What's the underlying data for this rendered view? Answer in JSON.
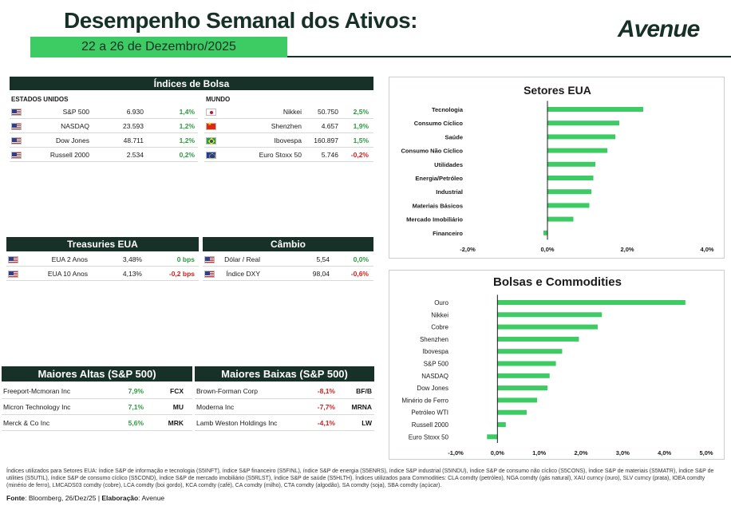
{
  "header": {
    "title": "Desempenho Semanal dos Ativos:",
    "date_range": "22 a 26 de Dezembro/2025",
    "logo": "Avenue"
  },
  "indices": {
    "title": "Índices de Bolsa",
    "us_label": "ESTADOS UNIDOS",
    "world_label": "MUNDO",
    "us": [
      {
        "flag": "us",
        "name": "S&P 500",
        "value": "6.930",
        "change": "1,4%"
      },
      {
        "flag": "us",
        "name": "NASDAQ",
        "value": "23.593",
        "change": "1,2%"
      },
      {
        "flag": "us",
        "name": "Dow Jones",
        "value": "48.711",
        "change": "1,2%"
      },
      {
        "flag": "us",
        "name": "Russell 2000",
        "value": "2.534",
        "change": "0,2%"
      }
    ],
    "world": [
      {
        "flag": "jp",
        "name": "Nikkei",
        "value": "50.750",
        "change": "2,5%"
      },
      {
        "flag": "cn",
        "name": "Shenzhen",
        "value": "4.657",
        "change": "1,9%"
      },
      {
        "flag": "br",
        "name": "Ibovespa",
        "value": "160.897",
        "change": "1,5%"
      },
      {
        "flag": "eu",
        "name": "Euro Stoxx 50",
        "value": "5.746",
        "change": "-0,2%"
      }
    ]
  },
  "treasuries": {
    "title": "Treasuries EUA",
    "rows": [
      {
        "flag": "us",
        "name": "EUA 2 Anos",
        "value": "3,48%",
        "change": "0 bps"
      },
      {
        "flag": "us",
        "name": "EUA 10 Anos",
        "value": "4,13%",
        "change": "-0,2 bps"
      }
    ]
  },
  "fx": {
    "title": "Câmbio",
    "rows": [
      {
        "flag": "us",
        "name": "Dólar / Real",
        "value": "5,54",
        "change": "0,0%"
      },
      {
        "flag": "us",
        "name": "Índice DXY",
        "value": "98,04",
        "change": "-0,6%"
      }
    ]
  },
  "top_gainers": {
    "title": "Maiores Altas (S&P 500)",
    "rows": [
      {
        "name": "Freeport-Mcmoran Inc",
        "change": "7,9%",
        "ticker": "FCX"
      },
      {
        "name": "Micron Technology Inc",
        "change": "7,1%",
        "ticker": "MU"
      },
      {
        "name": "Merck & Co Inc",
        "change": "5,6%",
        "ticker": "MRK"
      }
    ]
  },
  "top_losers": {
    "title": "Maiores Baixas (S&P 500)",
    "rows": [
      {
        "name": "Brown-Forman Corp",
        "change": "-8,1%",
        "ticker": "BF/B"
      },
      {
        "name": "Moderna Inc",
        "change": "-7,7%",
        "ticker": "MRNA"
      },
      {
        "name": "Lamb Weston Holdings Inc",
        "change": "-4,1%",
        "ticker": "LW"
      }
    ]
  },
  "chart_data": [
    {
      "type": "bar",
      "orientation": "horizontal",
      "title": "Setores EUA",
      "categories": [
        "Tecnologia",
        "Consumo Cíclico",
        "Saúde",
        "Consumo Não Cíclico",
        "Utilidades",
        "Energia/Petróleo",
        "Industrial",
        "Materiais Básicos",
        "Mercado Imobiliário",
        "Financeiro"
      ],
      "values": [
        2.4,
        1.8,
        1.7,
        1.5,
        1.2,
        1.15,
        1.1,
        1.05,
        0.65,
        -0.1
      ],
      "xlim": [
        -2.0,
        4.0
      ],
      "ticks": [
        "-2,0%",
        "0,0%",
        "2,0%",
        "4,0%"
      ],
      "tick_values": [
        -2.0,
        0.0,
        2.0,
        4.0
      ],
      "color": "#3dcb63"
    },
    {
      "type": "bar",
      "orientation": "horizontal",
      "title": "Bolsas e Commodities",
      "categories": [
        "Ouro",
        "Nikkei",
        "Cobre",
        "Shenzhen",
        "Ibovespa",
        "S&P 500",
        "NASDAQ",
        "Dow Jones",
        "Minério de Ferro",
        "Petróleo WTI",
        "Russell 2000",
        "Euro Stoxx 50"
      ],
      "values": [
        4.5,
        2.5,
        2.4,
        1.95,
        1.55,
        1.4,
        1.25,
        1.2,
        0.95,
        0.7,
        0.2,
        -0.25
      ],
      "xlim": [
        -1.0,
        5.0
      ],
      "ticks": [
        "-1,0%",
        "0,0%",
        "1,0%",
        "2,0%",
        "3,0%",
        "4,0%",
        "5,0%"
      ],
      "tick_values": [
        -1.0,
        0.0,
        1.0,
        2.0,
        3.0,
        4.0,
        5.0
      ],
      "color": "#3dcb63"
    }
  ],
  "footnote": "Índices utilizados para Setores EUA: índice S&P de informação e tecnologia (S5INFT), índice S&P financeiro (S5FINL), índice S&P de energia (S5ENRS), índice S&P industrial (S5INDU), índice S&P de consumo não cíclico (S5CONS), índice S&P de materiais (S5MATR), índice S&P de utilities (S5UTIL), índice S&P de consumo cíclico (S5COND), índice S&P de mercado imobiliário (S5RLST), índice S&P de saúde (S5HLTH). Índices utilizados para Commodities: CLA comdty (petróleo), NGA comdty (gás natural), XAU curncy (ouro), SLV curncy (prata), IOEA comdty (minério de ferro), LMCADS03 comdty (cobre), LCA comdty (boi gordo), KCA comdty (café), CA comdty (milho), CTA comdty (algodão), SA comdty (soja), SBA comdty (açúcar).",
  "source": {
    "label": "Fonte",
    "text": ": Bloomberg, 26/Dez/25",
    "separator": " | ",
    "author_label": "Elaboração",
    "author_text": ": Avenue"
  }
}
